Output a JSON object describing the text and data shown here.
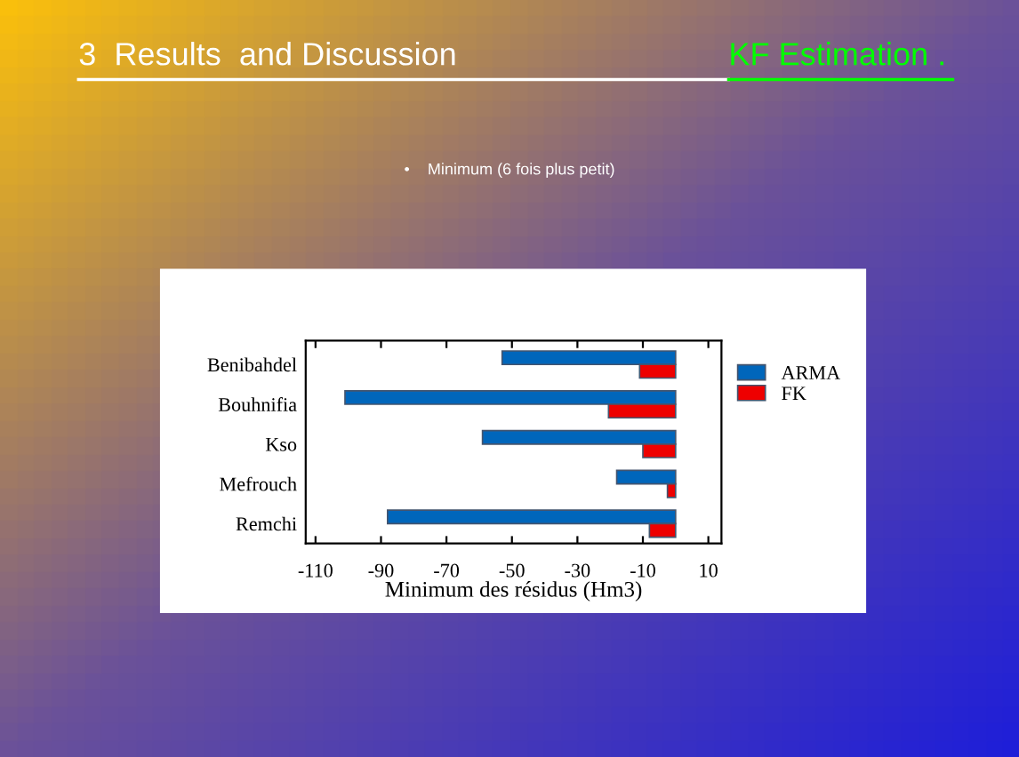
{
  "chart_data": {
    "type": "bar",
    "orientation": "horizontal",
    "title": "3  Results  and Discussion",
    "subtitle": "KF Estimation .",
    "annotations": [
      "•    Minimum (6 fois plus petit)"
    ],
    "xlabel": "Minimum des résidus (Hm3)",
    "categories": [
      "Benibahdel",
      "Bouhnifia",
      "Kso",
      "Mefrouch",
      "Remchi"
    ],
    "series": [
      {
        "name": "ARMA",
        "color": "#0066bb",
        "values": [
          -53,
          -101,
          -59,
          -18,
          -88
        ]
      },
      {
        "name": "FK",
        "color": "#ee0000",
        "values": [
          -11,
          -20.5,
          -10,
          -2.5,
          -8
        ]
      }
    ],
    "xlim": [
      -113,
      14
    ],
    "xticks": [
      -110,
      -90,
      -70,
      -50,
      -30,
      -10,
      10
    ],
    "grid": false,
    "legend": "right"
  }
}
